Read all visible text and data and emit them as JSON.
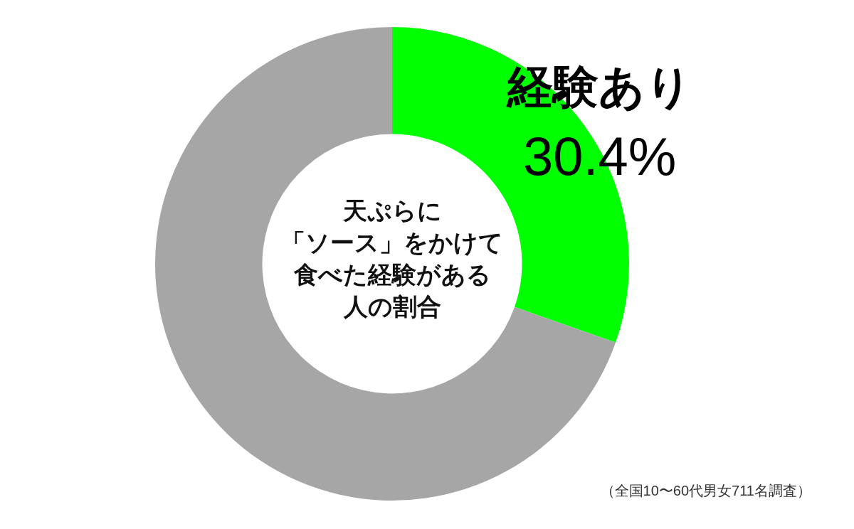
{
  "chart_data": {
    "type": "donut",
    "title": "天ぷらに「ソース」をかけて食べた経験がある人の割合",
    "categories": [
      "経験あり",
      null
    ],
    "values": [
      30.4,
      69.6
    ],
    "colors": [
      "#00ff00",
      "#a6a6a6"
    ],
    "value_labels": [
      "30.4%",
      null
    ],
    "annotations": [
      "（全国10〜60代男女711名調査）"
    ]
  }
}
